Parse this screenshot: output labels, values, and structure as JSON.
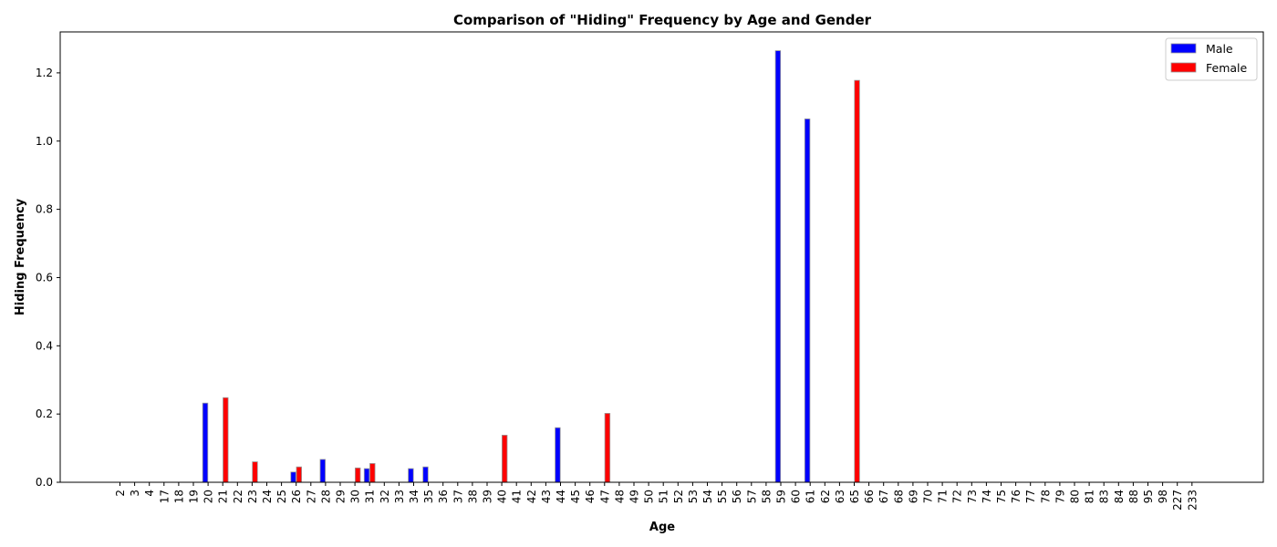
{
  "chart_data": {
    "type": "bar",
    "title": "Comparison of \"Hiding\" Frequency by Age and Gender",
    "xlabel": "Age",
    "ylabel": "Hiding Frequency",
    "categories": [
      "2",
      "3",
      "4",
      "17",
      "18",
      "19",
      "20",
      "21",
      "22",
      "23",
      "24",
      "25",
      "26",
      "27",
      "28",
      "29",
      "30",
      "31",
      "32",
      "33",
      "34",
      "35",
      "36",
      "37",
      "38",
      "39",
      "40",
      "41",
      "42",
      "43",
      "44",
      "45",
      "46",
      "47",
      "48",
      "49",
      "50",
      "51",
      "52",
      "53",
      "54",
      "55",
      "56",
      "57",
      "58",
      "59",
      "60",
      "61",
      "62",
      "63",
      "65",
      "66",
      "67",
      "68",
      "69",
      "70",
      "71",
      "72",
      "73",
      "74",
      "75",
      "76",
      "77",
      "78",
      "79",
      "80",
      "81",
      "83",
      "84",
      "88",
      "95",
      "98",
      "227",
      "233"
    ],
    "series": [
      {
        "name": "Male",
        "color": "#0000ff",
        "values": [
          0,
          0,
          0,
          0,
          0,
          0,
          0.232,
          0,
          0,
          0,
          0,
          0,
          0.03,
          0,
          0.067,
          0,
          0,
          0.04,
          0,
          0,
          0.04,
          0.045,
          0,
          0,
          0,
          0,
          0,
          0,
          0,
          0,
          0.16,
          0,
          0,
          0,
          0,
          0,
          0,
          0,
          0,
          0,
          0,
          0,
          0,
          0,
          0,
          1.265,
          0,
          1.065,
          0,
          0,
          0,
          0,
          0,
          0,
          0,
          0,
          0,
          0,
          0,
          0,
          0,
          0,
          0,
          0,
          0,
          0,
          0,
          0,
          0,
          0,
          0,
          0,
          0,
          0
        ]
      },
      {
        "name": "Female",
        "color": "#ff0000",
        "values": [
          0,
          0,
          0,
          0,
          0,
          0,
          0,
          0.248,
          0,
          0.06,
          0,
          0,
          0.045,
          0,
          0,
          0,
          0.042,
          0.055,
          0,
          0,
          0,
          0,
          0,
          0,
          0,
          0,
          0.138,
          0,
          0,
          0,
          0,
          0,
          0,
          0.202,
          0,
          0,
          0,
          0,
          0,
          0,
          0,
          0,
          0,
          0,
          0,
          0,
          0,
          0,
          0,
          0,
          1.178,
          0,
          0,
          0,
          0,
          0,
          0,
          0,
          0,
          0,
          0,
          0,
          0,
          0,
          0,
          0,
          0,
          0,
          0,
          0,
          0,
          0,
          0,
          0
        ]
      }
    ],
    "ylim": [
      0,
      1.32
    ],
    "yticks": [
      "0.0",
      "0.2",
      "0.4",
      "0.6",
      "0.8",
      "1.0",
      "1.2"
    ],
    "ytick_values": [
      0,
      0.2,
      0.4,
      0.6,
      0.8,
      1.0,
      1.2
    ],
    "grid": false,
    "legend_position": "top-right",
    "bar_edge_color": "#999999"
  }
}
